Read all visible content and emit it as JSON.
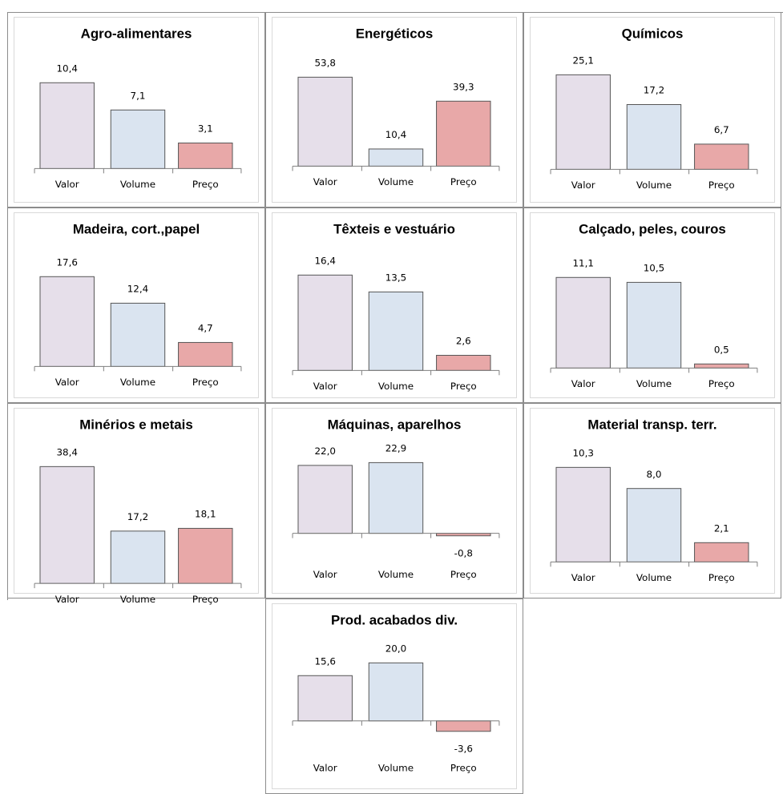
{
  "colors": {
    "valor_fill": "#e6dfea",
    "volume_fill": "#dae4f0",
    "preco_fill": "#e8a8a8",
    "bar_stroke": "#555555",
    "axis": "#7f7f7f"
  },
  "chart_data": [
    {
      "type": "bar",
      "title": "Agro-alimentares",
      "categories": [
        "Valor",
        "Volume",
        "Preço"
      ],
      "values": [
        10.4,
        7.1,
        3.1
      ],
      "labels": [
        "10,4",
        "7,1",
        "3,1"
      ]
    },
    {
      "type": "bar",
      "title": "Energéticos",
      "categories": [
        "Valor",
        "Volume",
        "Preço"
      ],
      "values": [
        53.8,
        10.4,
        39.3
      ],
      "labels": [
        "53,8",
        "10,4",
        "39,3"
      ]
    },
    {
      "type": "bar",
      "title": "Químicos",
      "categories": [
        "Valor",
        "Volume",
        "Preço"
      ],
      "values": [
        25.1,
        17.2,
        6.7
      ],
      "labels": [
        "25,1",
        "17,2",
        "6,7"
      ]
    },
    {
      "type": "bar",
      "title": "Madeira, cort.,papel",
      "categories": [
        "Valor",
        "Volume",
        "Preço"
      ],
      "values": [
        17.6,
        12.4,
        4.7
      ],
      "labels": [
        "17,6",
        "12,4",
        "4,7"
      ]
    },
    {
      "type": "bar",
      "title": "Têxteis e vestuário",
      "categories": [
        "Valor",
        "Volume",
        "Preço"
      ],
      "values": [
        16.4,
        13.5,
        2.6
      ],
      "labels": [
        "16,4",
        "13,5",
        "2,6"
      ]
    },
    {
      "type": "bar",
      "title": "Calçado, peles, couros",
      "categories": [
        "Valor",
        "Volume",
        "Preço"
      ],
      "values": [
        11.1,
        10.5,
        0.5
      ],
      "labels": [
        "11,1",
        "10,5",
        "0,5"
      ]
    },
    {
      "type": "bar",
      "title": "Minérios e metais",
      "categories": [
        "Valor",
        "Volume",
        "Preço"
      ],
      "values": [
        38.4,
        17.2,
        18.1
      ],
      "labels": [
        "38,4",
        "17,2",
        "18,1"
      ]
    },
    {
      "type": "bar",
      "title": "Máquinas, aparelhos",
      "categories": [
        "Valor",
        "Volume",
        "Preço"
      ],
      "values": [
        22.0,
        22.9,
        -0.8
      ],
      "labels": [
        "22,0",
        "22,9",
        "-0,8"
      ]
    },
    {
      "type": "bar",
      "title": "Material transp. terr.",
      "categories": [
        "Valor",
        "Volume",
        "Preço"
      ],
      "values": [
        10.3,
        8.0,
        2.1
      ],
      "labels": [
        "10,3",
        "8,0",
        "2,1"
      ]
    },
    {
      "type": "bar",
      "title": "Prod. acabados div.",
      "categories": [
        "Valor",
        "Volume",
        "Preço"
      ],
      "values": [
        15.6,
        20.0,
        -3.6
      ],
      "labels": [
        "15,6",
        "20,0",
        "-3,6"
      ]
    }
  ]
}
